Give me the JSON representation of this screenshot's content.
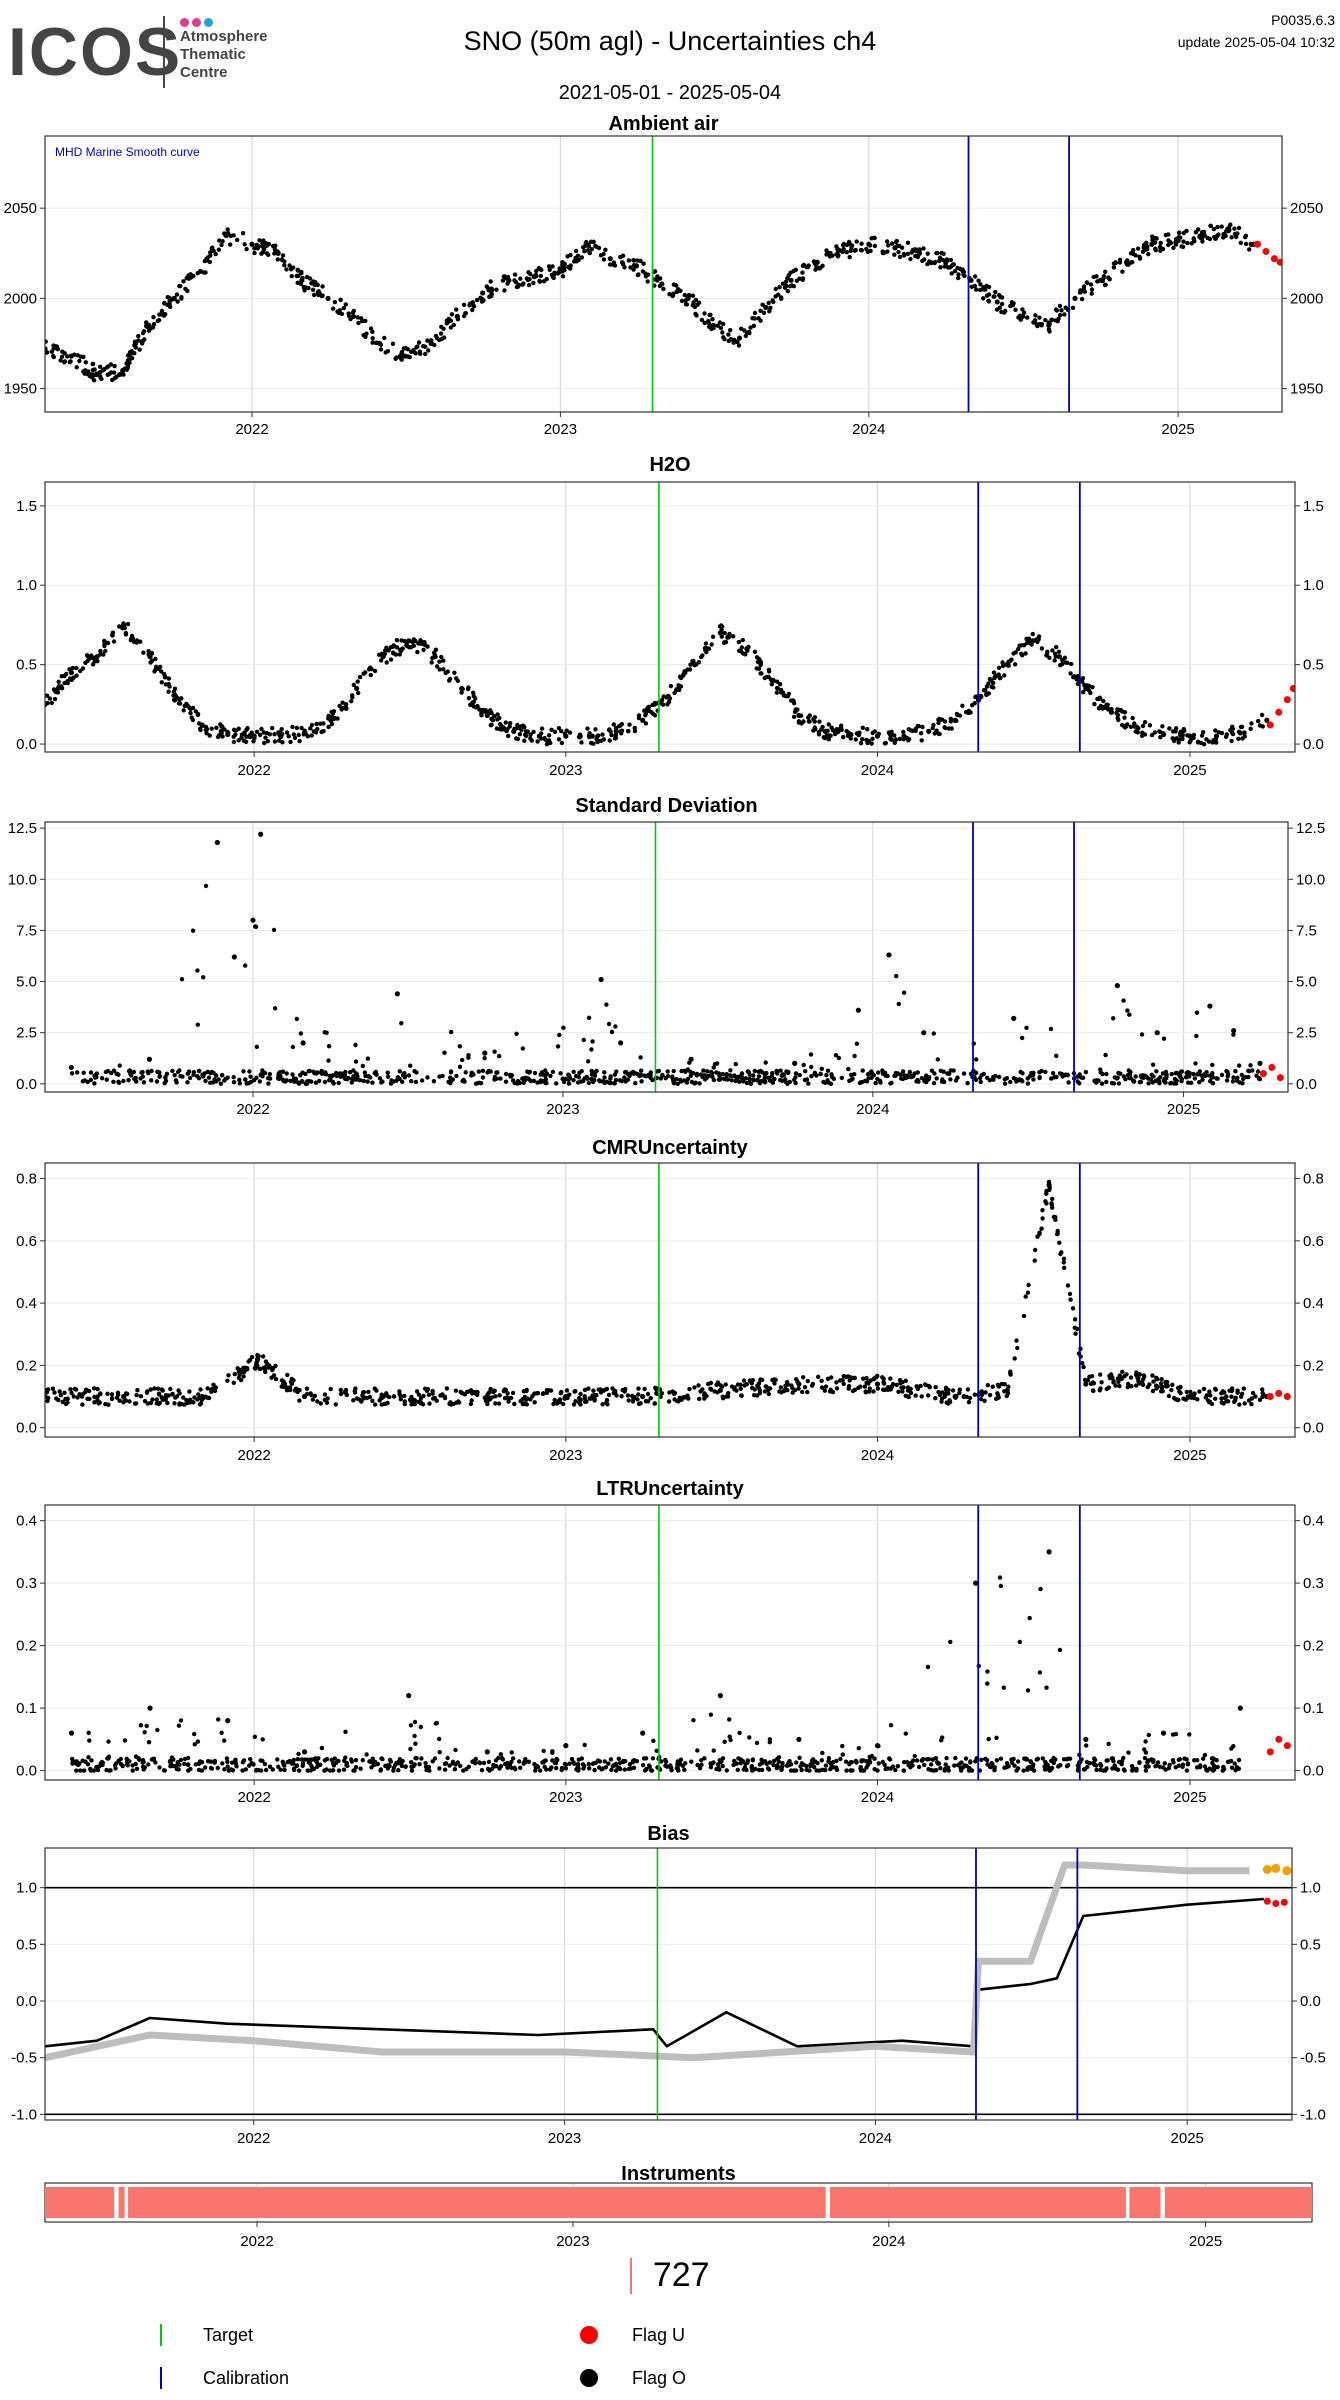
{
  "header": {
    "logo": {
      "name": "ICOS",
      "sub": [
        "Atmosphere",
        "Thematic",
        "Centre"
      ]
    },
    "title": "SNO  (50m agl) - Uncertainties ch4",
    "date_range": "2021-05-01 - 2025-05-04",
    "version": "P0035.6.3",
    "update": "update  2025-05-04 10:32"
  },
  "colors": {
    "flag_o": "#000000",
    "flag_u": "#ff0000",
    "target": "#00cc00",
    "calibration": "#0000bb",
    "instrument": "#f8766d",
    "ref_gray": "#bdbdbd",
    "ref_orange": "#f5a000"
  },
  "chart_data": [
    {
      "type": "scatter",
      "title": "Ambient air",
      "annotation": "MHD Marine Smooth curve",
      "x_range": [
        "2021-05-01",
        "2025-05-04"
      ],
      "x_ticks": [
        "2022",
        "2023",
        "2024",
        "2025"
      ],
      "y_ticks": [
        1950,
        2000,
        2050
      ],
      "ylim": [
        1937,
        2090
      ],
      "target_lines": [
        "2023-04-20"
      ],
      "calibration_lines": [
        "2024-04-28",
        "2024-08-25"
      ],
      "series": [
        {
          "x": [
            "2021-05-01",
            "2021-06-01",
            "2021-07-01",
            "2021-08-01",
            "2021-09-01",
            "2021-10-01",
            "2021-11-01",
            "2021-12-01",
            "2022-01-01",
            "2022-02-01",
            "2022-03-01",
            "2022-04-01",
            "2022-05-01",
            "2022-06-01",
            "2022-07-01",
            "2022-08-01",
            "2022-09-01",
            "2022-10-01",
            "2022-11-01",
            "2022-12-01",
            "2023-01-01",
            "2023-02-01",
            "2023-03-01",
            "2023-04-01",
            "2023-05-01",
            "2023-06-01",
            "2023-07-01",
            "2023-08-01",
            "2023-09-01",
            "2023-10-01",
            "2023-11-01",
            "2023-12-01",
            "2024-01-01",
            "2024-02-01",
            "2024-03-01",
            "2024-04-01",
            "2024-05-01",
            "2024-06-01",
            "2024-07-01",
            "2024-08-01",
            "2024-09-01",
            "2024-10-01",
            "2024-11-01",
            "2024-12-01",
            "2025-01-01",
            "2025-02-01",
            "2025-03-01",
            "2025-04-01"
          ],
          "y": [
            1972,
            1968,
            1958,
            1960,
            1985,
            2000,
            2015,
            2035,
            2030,
            2025,
            2010,
            2000,
            1990,
            1975,
            1968,
            1975,
            1990,
            2003,
            2010,
            2012,
            2015,
            2030,
            2022,
            2018,
            2008,
            2000,
            1985,
            1978,
            1995,
            2010,
            2020,
            2026,
            2030,
            2028,
            2025,
            2020,
            2010,
            1998,
            1990,
            1985,
            2000,
            2010,
            2020,
            2030,
            2032,
            2035,
            2038,
            2030
          ]
        }
      ],
      "flag_u_points": {
        "x": [
          "2025-04-05",
          "2025-04-15",
          "2025-04-25",
          "2025-05-02"
        ],
        "y": [
          2030,
          2026,
          2022,
          2020
        ]
      }
    },
    {
      "type": "scatter",
      "title": "H2O",
      "x_range": [
        "2021-05-01",
        "2025-05-04"
      ],
      "x_ticks": [
        "2022",
        "2023",
        "2024",
        "2025"
      ],
      "y_ticks": [
        0.0,
        0.5,
        1.0,
        1.5
      ],
      "ylim": [
        -0.05,
        1.65
      ],
      "target_lines": [
        "2023-04-20"
      ],
      "calibration_lines": [
        "2024-04-28",
        "2024-08-25"
      ],
      "series": [
        {
          "x": [
            "2021-05-01",
            "2021-06-01",
            "2021-07-01",
            "2021-08-01",
            "2021-09-01",
            "2021-10-01",
            "2021-11-01",
            "2021-12-01",
            "2022-01-01",
            "2022-02-01",
            "2022-03-01",
            "2022-04-01",
            "2022-05-01",
            "2022-06-01",
            "2022-07-01",
            "2022-08-01",
            "2022-09-01",
            "2022-10-01",
            "2022-11-01",
            "2022-12-01",
            "2023-01-01",
            "2023-02-01",
            "2023-03-01",
            "2023-04-01",
            "2023-05-01",
            "2023-06-01",
            "2023-07-01",
            "2023-08-01",
            "2023-09-01",
            "2023-10-01",
            "2023-11-01",
            "2023-12-01",
            "2024-01-01",
            "2024-02-01",
            "2024-03-01",
            "2024-04-01",
            "2024-05-01",
            "2024-06-01",
            "2024-07-01",
            "2024-08-01",
            "2024-09-01",
            "2024-10-01",
            "2024-11-01",
            "2024-12-01",
            "2025-01-01",
            "2025-02-01",
            "2025-03-01",
            "2025-04-01"
          ],
          "y": [
            0.25,
            0.45,
            0.55,
            0.75,
            0.55,
            0.3,
            0.12,
            0.06,
            0.05,
            0.05,
            0.07,
            0.15,
            0.35,
            0.55,
            0.65,
            0.55,
            0.35,
            0.18,
            0.08,
            0.05,
            0.05,
            0.05,
            0.08,
            0.15,
            0.3,
            0.5,
            0.7,
            0.6,
            0.4,
            0.18,
            0.08,
            0.06,
            0.05,
            0.05,
            0.08,
            0.15,
            0.3,
            0.5,
            0.65,
            0.55,
            0.35,
            0.2,
            0.1,
            0.06,
            0.05,
            0.05,
            0.07,
            0.15
          ]
        }
      ],
      "flag_u_points": {
        "x": [
          "2025-04-05",
          "2025-04-15",
          "2025-04-25",
          "2025-05-02"
        ],
        "y": [
          0.12,
          0.2,
          0.28,
          0.35
        ]
      }
    },
    {
      "type": "scatter",
      "title": "Standard Deviation",
      "x_range": [
        "2021-05-01",
        "2025-05-04"
      ],
      "x_ticks": [
        "2022",
        "2023",
        "2024",
        "2025"
      ],
      "y_ticks": [
        0.0,
        2.5,
        5.0,
        7.5,
        10.0,
        12.5
      ],
      "y_tick_labels": [
        "0.0",
        "2.5",
        "5.0",
        "7.5",
        "10.0",
        "12.5"
      ],
      "ylim": [
        -0.4,
        12.8
      ],
      "target_lines": [
        "2023-04-20"
      ],
      "calibration_lines": [
        "2024-04-28",
        "2024-08-25"
      ],
      "series": [
        {
          "x": [
            "2021-06-01",
            "2021-09-01",
            "2021-11-20",
            "2021-12-10",
            "2022-01-01",
            "2022-01-10",
            "2022-03-01",
            "2022-06-20",
            "2022-10-01",
            "2023-02-15",
            "2023-03-10",
            "2023-06-01",
            "2023-10-01",
            "2023-12-15",
            "2024-01-20",
            "2024-03-01",
            "2024-06-15",
            "2024-10-15",
            "2024-12-01",
            "2025-02-01",
            "2025-03-01",
            "2025-04-01"
          ],
          "y": [
            0.8,
            1.2,
            11.8,
            6.2,
            8.0,
            12.2,
            2.0,
            4.4,
            1.5,
            5.1,
            2.0,
            1.2,
            1.0,
            3.6,
            6.3,
            2.5,
            3.2,
            4.8,
            2.5,
            3.8,
            2.6,
            1.0
          ]
        }
      ],
      "flag_u_points": {
        "x": [
          "2025-04-05",
          "2025-04-15",
          "2025-04-25"
        ],
        "y": [
          0.5,
          0.8,
          0.3
        ]
      }
    },
    {
      "type": "scatter",
      "title": "CMRUncertainty",
      "x_range": [
        "2021-05-01",
        "2025-05-04"
      ],
      "x_ticks": [
        "2022",
        "2023",
        "2024",
        "2025"
      ],
      "y_ticks": [
        0.0,
        0.2,
        0.4,
        0.6,
        0.8
      ],
      "ylim": [
        -0.03,
        0.85
      ],
      "target_lines": [
        "2023-04-20"
      ],
      "calibration_lines": [
        "2024-04-28",
        "2024-08-25"
      ],
      "series": [
        {
          "x": [
            "2021-05-01",
            "2021-08-01",
            "2021-11-01",
            "2021-12-20",
            "2022-01-05",
            "2022-03-01",
            "2022-06-01",
            "2022-10-01",
            "2023-01-01",
            "2023-04-01",
            "2023-07-01",
            "2023-10-01",
            "2024-01-01",
            "2024-04-01",
            "2024-06-01",
            "2024-07-20",
            "2024-09-01",
            "2024-11-01",
            "2025-01-01",
            "2025-04-01"
          ],
          "y": [
            0.1,
            0.1,
            0.1,
            0.18,
            0.22,
            0.1,
            0.1,
            0.1,
            0.1,
            0.1,
            0.12,
            0.14,
            0.14,
            0.1,
            0.12,
            0.78,
            0.14,
            0.16,
            0.1,
            0.1
          ]
        }
      ],
      "flag_u_points": {
        "x": [
          "2025-04-05",
          "2025-04-15",
          "2025-04-25"
        ],
        "y": [
          0.1,
          0.11,
          0.1
        ]
      }
    },
    {
      "type": "scatter",
      "title": "LTRUncertainty",
      "x_range": [
        "2021-05-01",
        "2025-05-04"
      ],
      "x_ticks": [
        "2022",
        "2023",
        "2024",
        "2025"
      ],
      "y_ticks": [
        0.0,
        0.1,
        0.2,
        0.3,
        0.4
      ],
      "ylim": [
        -0.015,
        0.425
      ],
      "target_lines": [
        "2023-04-20"
      ],
      "calibration_lines": [
        "2024-04-28",
        "2024-08-25"
      ],
      "series": [
        {
          "x": [
            "2021-06-01",
            "2021-09-01",
            "2021-12-01",
            "2022-03-01",
            "2022-07-01",
            "2022-10-01",
            "2023-01-01",
            "2023-04-01",
            "2023-07-01",
            "2023-10-01",
            "2024-01-01",
            "2024-04-25",
            "2024-07-20",
            "2024-09-01",
            "2024-12-01",
            "2025-03-01"
          ],
          "y": [
            0.06,
            0.1,
            0.08,
            0.03,
            0.12,
            0.03,
            0.04,
            0.06,
            0.12,
            0.05,
            0.04,
            0.3,
            0.35,
            0.05,
            0.06,
            0.1
          ]
        }
      ],
      "flag_u_points": {
        "x": [
          "2025-04-05",
          "2025-04-15",
          "2025-04-25"
        ],
        "y": [
          0.03,
          0.05,
          0.04
        ]
      }
    },
    {
      "type": "line",
      "title": "Bias",
      "x_range": [
        "2021-05-01",
        "2025-05-04"
      ],
      "x_ticks": [
        "2022",
        "2023",
        "2024",
        "2025"
      ],
      "y_ticks": [
        -1.0,
        -0.5,
        0.0,
        0.5,
        1.0
      ],
      "ylim": [
        -1.05,
        1.35
      ],
      "hlines": [
        1.0,
        -1.0
      ],
      "target_lines": [
        "2023-04-20"
      ],
      "calibration_lines": [
        "2024-04-28",
        "2024-08-25"
      ],
      "series": [
        {
          "style": "measured",
          "x": [
            "2021-05-01",
            "2021-07-01",
            "2021-09-01",
            "2021-12-01",
            "2022-06-01",
            "2022-12-01",
            "2023-04-15",
            "2023-05-01",
            "2023-07-10",
            "2023-10-01",
            "2024-02-01",
            "2024-04-25",
            "2024-05-01",
            "2024-07-01",
            "2024-08-01",
            "2024-09-01",
            "2025-01-01",
            "2025-04-01"
          ],
          "y": [
            -0.4,
            -0.35,
            -0.15,
            -0.2,
            -0.25,
            -0.3,
            -0.25,
            -0.4,
            -0.1,
            -0.4,
            -0.35,
            -0.4,
            0.1,
            0.15,
            0.2,
            0.75,
            0.85,
            0.9
          ]
        },
        {
          "style": "reference",
          "x": [
            "2021-05-01",
            "2021-09-01",
            "2022-01-01",
            "2022-06-01",
            "2023-01-01",
            "2023-06-01",
            "2024-01-01",
            "2024-04-25",
            "2024-05-01",
            "2024-07-01",
            "2024-08-10",
            "2024-09-01",
            "2025-01-01",
            "2025-03-15"
          ],
          "y": [
            -0.5,
            -0.3,
            -0.35,
            -0.45,
            -0.45,
            -0.5,
            -0.4,
            -0.45,
            0.35,
            0.35,
            1.2,
            1.2,
            1.15,
            1.15
          ]
        }
      ],
      "flag_u_points": {
        "x": [
          "2025-04-05",
          "2025-04-15",
          "2025-04-25"
        ],
        "y": [
          0.88,
          0.86,
          0.87
        ]
      },
      "orange_points": {
        "x": [
          "2025-04-05",
          "2025-04-15",
          "2025-04-28"
        ],
        "y": [
          1.16,
          1.17,
          1.15
        ]
      }
    },
    {
      "type": "bar",
      "title": "Instruments",
      "x_range": [
        "2021-05-01",
        "2025-05-04"
      ],
      "x_ticks": [
        "2022",
        "2023",
        "2024",
        "2025"
      ],
      "segments": [
        {
          "start": "2021-05-01",
          "end": "2021-07-20",
          "instrument": "727"
        },
        {
          "start": "2021-07-25",
          "end": "2021-08-01",
          "instrument": "727"
        },
        {
          "start": "2021-08-05",
          "end": "2023-10-20",
          "instrument": "727"
        },
        {
          "start": "2023-10-25",
          "end": "2024-10-01",
          "instrument": "727"
        },
        {
          "start": "2024-10-05",
          "end": "2024-11-10",
          "instrument": "727"
        },
        {
          "start": "2024-11-15",
          "end": "2025-05-04",
          "instrument": "727"
        }
      ]
    }
  ],
  "legend": {
    "instrument_id": "727",
    "target": "Target",
    "calibration": "Calibration",
    "flag_u": "Flag U",
    "flag_o": "Flag O"
  }
}
